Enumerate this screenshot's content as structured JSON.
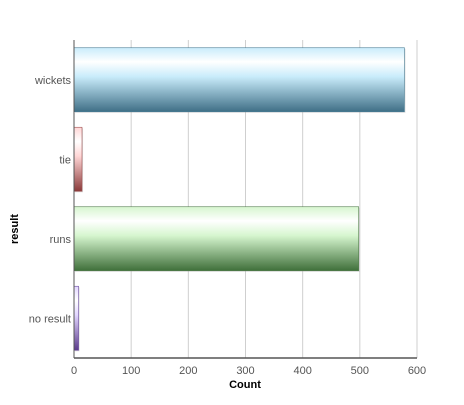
{
  "chart_data": {
    "type": "bar",
    "orientation": "horizontal",
    "title": "",
    "xlabel": "Count",
    "ylabel": "result",
    "categories": [
      "wickets",
      "tie",
      "runs",
      "no result"
    ],
    "values": [
      578,
      14,
      498,
      8
    ],
    "xlim": [
      0,
      600
    ],
    "xticks": [
      0,
      100,
      200,
      300,
      400,
      500,
      600
    ],
    "grid": "vertical",
    "legend": "none",
    "colors": {
      "wickets": [
        "#3f6f86",
        "#c9ecfb",
        "#4a7f97"
      ],
      "tie": [
        "#8a3a3a",
        "#ffd6d6",
        "#a05252"
      ],
      "runs": [
        "#3f6f3a",
        "#d6f6cf",
        "#557f4e"
      ],
      "no result": [
        "#5a3a8a",
        "#e2d6ff",
        "#6b4d9e"
      ]
    }
  }
}
